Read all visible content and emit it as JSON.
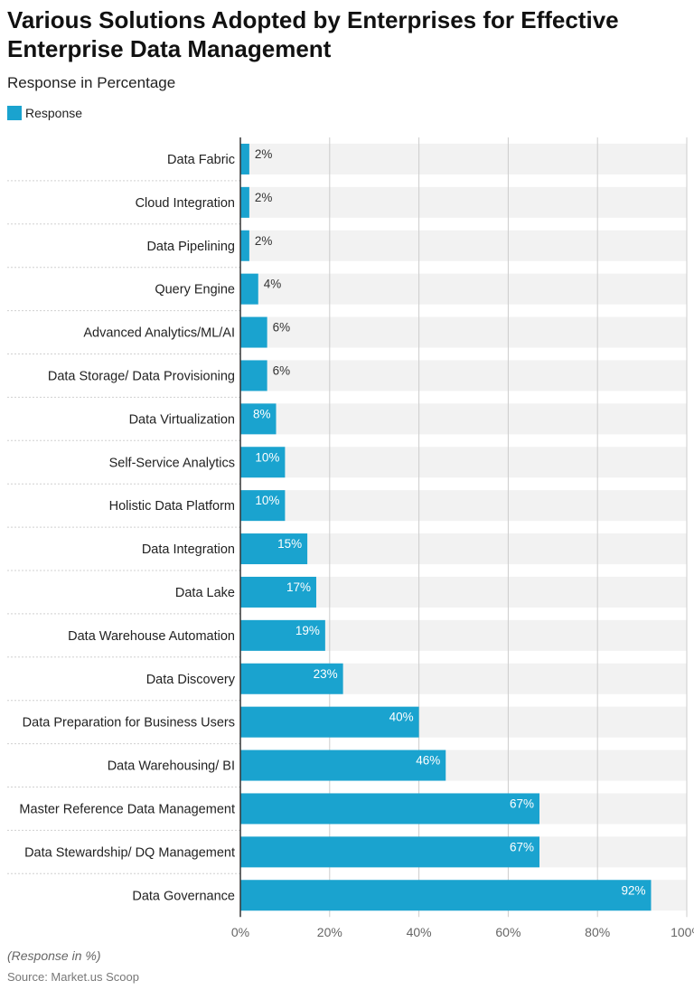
{
  "title": "Various Solutions Adopted by Enterprises for Effective Enterprise Data Management",
  "subtitle": "Response in Percentage",
  "footer": {
    "note": "(Response in %)",
    "source": "Source: Market.us Scoop"
  },
  "colors": {
    "bar": "#1aa3cf",
    "track": "#f2f2f2",
    "grid": "#cccccc",
    "axis": "#333333"
  },
  "chart_data": {
    "type": "bar",
    "orientation": "horizontal",
    "title": "Various Solutions Adopted by Enterprises for Effective Enterprise Data Management",
    "subtitle": "Response in Percentage",
    "xlabel": "",
    "ylabel": "",
    "xlim": [
      0,
      100
    ],
    "ticks": [
      "0%",
      "20%",
      "40%",
      "60%",
      "80%",
      "100%"
    ],
    "tick_values": [
      0,
      20,
      40,
      60,
      80,
      100
    ],
    "grid": true,
    "legend_position": "top-left",
    "unit_suffix": "%",
    "categories": [
      "Data Fabric",
      "Cloud Integration",
      "Data Pipelining",
      "Query Engine",
      "Advanced Analytics/ML/AI",
      "Data Storage/ Data Provisioning",
      "Data Virtualization",
      "Self-Service Analytics",
      "Holistic Data Platform",
      "Data Integration",
      "Data Lake",
      "Data Warehouse Automation",
      "Data Discovery",
      "Data Preparation for Business Users",
      "Data Warehousing/ BI",
      "Master Reference Data Management",
      "Data Stewardship/ DQ Management",
      "Data Governance"
    ],
    "series": [
      {
        "name": "Response",
        "values": [
          2,
          2,
          2,
          4,
          6,
          6,
          8,
          10,
          10,
          15,
          17,
          19,
          23,
          40,
          46,
          67,
          67,
          92
        ]
      }
    ]
  }
}
